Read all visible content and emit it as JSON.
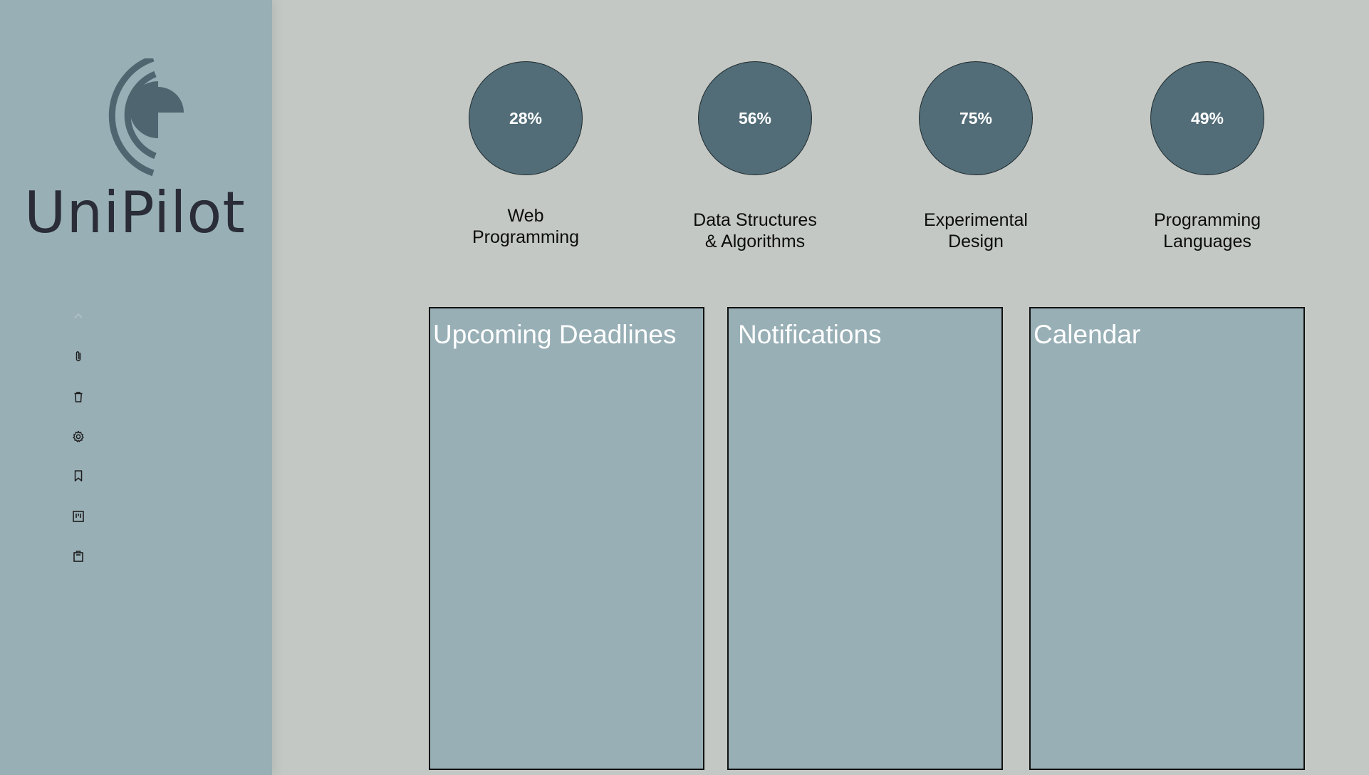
{
  "app": {
    "name": "UniPilot"
  },
  "sidebar": {
    "items": [
      {
        "icon": "chevron-up-icon"
      },
      {
        "icon": "paperclip-icon"
      },
      {
        "icon": "trash-icon"
      },
      {
        "icon": "gear-icon"
      },
      {
        "icon": "bookmark-icon"
      },
      {
        "icon": "board-icon"
      },
      {
        "icon": "clipboard-icon"
      }
    ]
  },
  "courses": [
    {
      "name": "Web\nProgramming",
      "progress": "28%",
      "progress_value": 28
    },
    {
      "name": "Data Structures\n& Algorithms",
      "progress": "56%",
      "progress_value": 56
    },
    {
      "name": "Experimental\nDesign",
      "progress": "75%",
      "progress_value": 75
    },
    {
      "name": "Programming\nLanguages",
      "progress": "49%",
      "progress_value": 49
    }
  ],
  "panels": {
    "deadlines": {
      "title": "Upcoming Deadlines"
    },
    "notifications": {
      "title": "Notifications"
    },
    "calendar": {
      "title": "Calendar"
    }
  },
  "colors": {
    "sidebar_bg": "#98afb6",
    "main_bg": "#c3c8c4",
    "ring_fill": "#526d78",
    "panel_bg": "#98afb6",
    "logo_text": "#2a2d38",
    "logo_mark": "#4f6570"
  }
}
